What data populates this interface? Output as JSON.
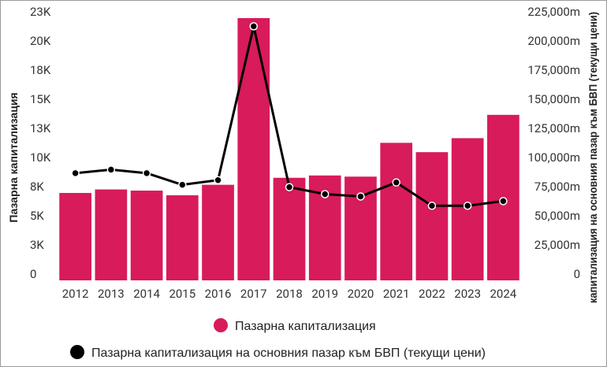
{
  "chart_data": {
    "type": "bar",
    "categories": [
      "2012",
      "2013",
      "2014",
      "2015",
      "2016",
      "2017",
      "2018",
      "2019",
      "2020",
      "2021",
      "2022",
      "2023",
      "2024"
    ],
    "series": [
      {
        "name": "Пазарна капитализация",
        "type": "bar",
        "axis": "left",
        "color": "#d81b5a",
        "values": [
          7500,
          7800,
          7700,
          7300,
          8200,
          22500,
          8800,
          9000,
          8900,
          11800,
          11000,
          12200,
          14200
        ]
      },
      {
        "name": "Пазарна капитализация на основния пазар към БВП (текущи цени)",
        "type": "line",
        "axis": "right",
        "color": "#000000",
        "values": [
          92000,
          95000,
          92000,
          82000,
          86000,
          218000,
          80000,
          74000,
          72000,
          84000,
          64000,
          64000,
          68000
        ]
      }
    ],
    "y_left": {
      "label": "Пазарна капитализация",
      "ticks": [
        "0",
        "3K",
        "5K",
        "8K",
        "10K",
        "13K",
        "15K",
        "18K",
        "20K",
        "23K"
      ],
      "tick_values": [
        0,
        2500,
        5000,
        7500,
        10000,
        12500,
        15000,
        17500,
        20000,
        22500
      ],
      "range": [
        0,
        22500
      ]
    },
    "y_right": {
      "label": "капитализация на основния пазар към БВП (текущи цени)",
      "ticks": [
        "0",
        "25,000m",
        "50,000m",
        "75,000m",
        "100,000m",
        "125,000m",
        "150,000m",
        "175,000m",
        "200,000m",
        "225,000m"
      ],
      "tick_values": [
        0,
        25000,
        50000,
        75000,
        100000,
        125000,
        150000,
        175000,
        200000,
        225000
      ],
      "range": [
        0,
        225000
      ]
    },
    "grid": false,
    "legend_position": "bottom"
  }
}
